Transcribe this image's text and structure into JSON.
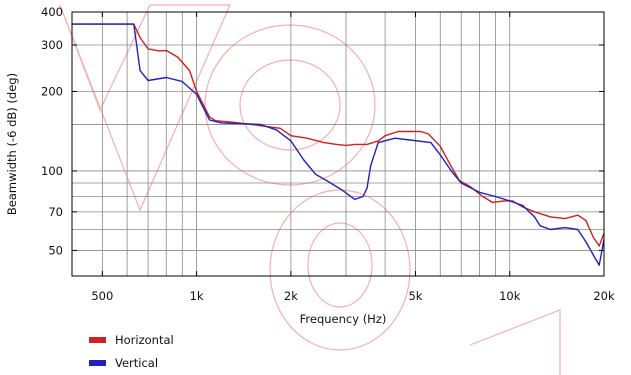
{
  "chart_data": {
    "type": "line",
    "title": "",
    "xlabel": "Frequency (Hz)",
    "ylabel": "Beamwidth (-6 dB) (deg)",
    "x_scale": "log",
    "y_scale": "log",
    "xlim": [
      400,
      20000
    ],
    "ylim": [
      40,
      400
    ],
    "x_ticks": [
      {
        "value": 500,
        "label": "500"
      },
      {
        "value": 1000,
        "label": "1k"
      },
      {
        "value": 2000,
        "label": "2k"
      },
      {
        "value": 5000,
        "label": "5k"
      },
      {
        "value": 10000,
        "label": "10k"
      },
      {
        "value": 20000,
        "label": "20k"
      }
    ],
    "y_ticks": [
      {
        "value": 50,
        "label": "50"
      },
      {
        "value": 70,
        "label": "70"
      },
      {
        "value": 100,
        "label": "100"
      },
      {
        "value": 200,
        "label": "200"
      },
      {
        "value": 300,
        "label": "300"
      },
      {
        "value": 400,
        "label": "400"
      }
    ],
    "grid": true,
    "legend_position": "bottom-left",
    "series": [
      {
        "name": "Horizontal",
        "color": "#cc2222",
        "points": [
          [
            400,
            360
          ],
          [
            630,
            360
          ],
          [
            660,
            320
          ],
          [
            700,
            290
          ],
          [
            760,
            285
          ],
          [
            800,
            286
          ],
          [
            870,
            270
          ],
          [
            950,
            240
          ],
          [
            1000,
            200
          ],
          [
            1100,
            160
          ],
          [
            1150,
            155
          ],
          [
            1300,
            153
          ],
          [
            1500,
            150
          ],
          [
            1700,
            147
          ],
          [
            1850,
            145
          ],
          [
            2000,
            136
          ],
          [
            2250,
            133
          ],
          [
            2550,
            128
          ],
          [
            2800,
            126
          ],
          [
            3000,
            125
          ],
          [
            3200,
            126
          ],
          [
            3500,
            126
          ],
          [
            3800,
            130
          ],
          [
            4000,
            136
          ],
          [
            4400,
            141
          ],
          [
            4800,
            141
          ],
          [
            5200,
            141
          ],
          [
            5500,
            138
          ],
          [
            6000,
            124
          ],
          [
            6500,
            104
          ],
          [
            6900,
            92
          ],
          [
            7500,
            87
          ],
          [
            8200,
            80
          ],
          [
            8800,
            76
          ],
          [
            9600,
            77
          ],
          [
            10200,
            77
          ],
          [
            11000,
            73
          ],
          [
            12000,
            70
          ],
          [
            13500,
            67
          ],
          [
            15000,
            66
          ],
          [
            16500,
            68
          ],
          [
            17500,
            65
          ],
          [
            18500,
            56
          ],
          [
            19300,
            52
          ],
          [
            20000,
            58
          ]
        ]
      },
      {
        "name": "Vertical",
        "color": "#2222bb",
        "points": [
          [
            400,
            360
          ],
          [
            630,
            360
          ],
          [
            660,
            240
          ],
          [
            700,
            220
          ],
          [
            800,
            226
          ],
          [
            900,
            218
          ],
          [
            1000,
            195
          ],
          [
            1100,
            156
          ],
          [
            1200,
            152
          ],
          [
            1400,
            151
          ],
          [
            1600,
            150
          ],
          [
            1800,
            143
          ],
          [
            2000,
            130
          ],
          [
            2200,
            110
          ],
          [
            2400,
            97
          ],
          [
            2600,
            92
          ],
          [
            2900,
            85
          ],
          [
            3200,
            78
          ],
          [
            3400,
            80
          ],
          [
            3500,
            86
          ],
          [
            3600,
            105
          ],
          [
            3800,
            128
          ],
          [
            4300,
            133
          ],
          [
            4800,
            131
          ],
          [
            5600,
            128
          ],
          [
            6000,
            115
          ],
          [
            6500,
            100
          ],
          [
            7000,
            90
          ],
          [
            8000,
            83
          ],
          [
            9000,
            80
          ],
          [
            10000,
            77
          ],
          [
            11000,
            74
          ],
          [
            12000,
            67
          ],
          [
            12500,
            62
          ],
          [
            13500,
            60
          ],
          [
            15000,
            61
          ],
          [
            16500,
            60
          ],
          [
            17500,
            54
          ],
          [
            18500,
            48
          ],
          [
            19300,
            44
          ],
          [
            20000,
            55
          ]
        ]
      }
    ]
  }
}
